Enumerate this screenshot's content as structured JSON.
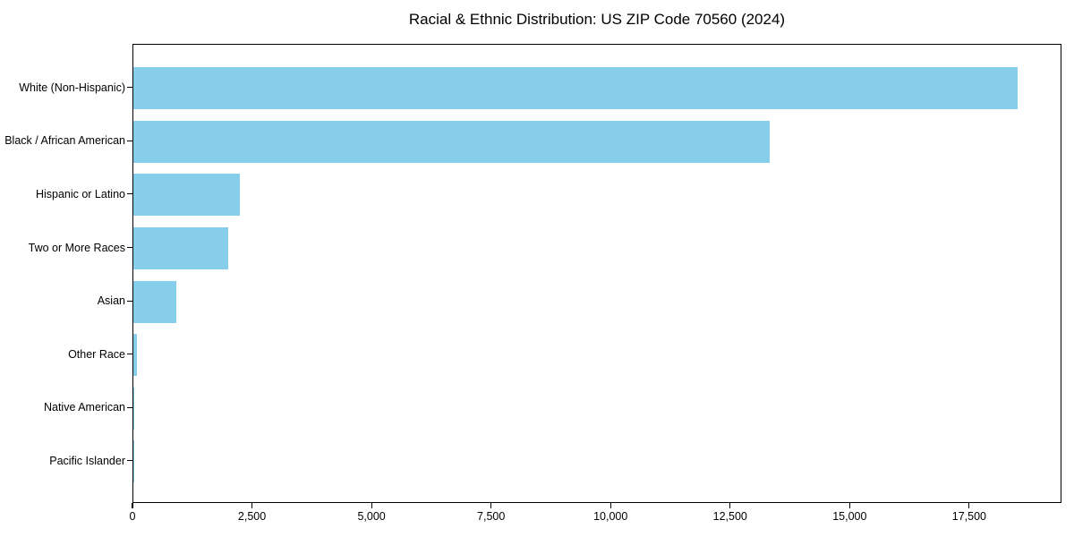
{
  "chart_data": {
    "type": "bar",
    "orientation": "horizontal",
    "title": "Racial & Ethnic Distribution: US ZIP Code 70560 (2024)",
    "categories": [
      "White (Non-Hispanic)",
      "Black / African American",
      "Hispanic or Latino",
      "Two or More Races",
      "Asian",
      "Other Race",
      "Native American",
      "Pacific Islander"
    ],
    "values": [
      18500,
      13300,
      2220,
      1980,
      900,
      80,
      25,
      10
    ],
    "xlabel": "",
    "ylabel": "",
    "xlim": [
      0,
      19430
    ],
    "xticks": [
      0,
      2500,
      5000,
      7500,
      10000,
      12500,
      15000,
      17500
    ],
    "xtick_labels": [
      "0",
      "2,500",
      "5,000",
      "7,500",
      "10,000",
      "12,500",
      "15,000",
      "17,500"
    ],
    "bar_color": "#87CEEB",
    "axis_color": "#000000",
    "text_color": "#000000",
    "background_color": "#ffffff",
    "grid": false,
    "legend": null
  }
}
